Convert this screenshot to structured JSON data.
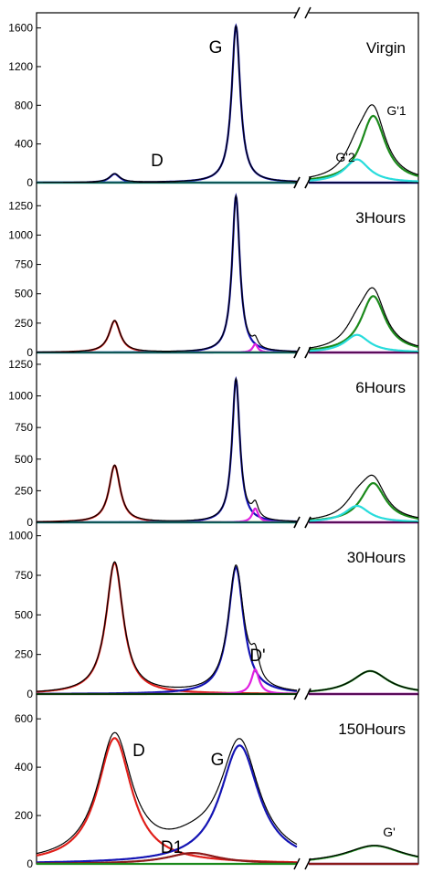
{
  "chart_data": {
    "type": "line",
    "x_type": "raman_shift_cm-1",
    "x_segments": [
      [
        1200,
        1700
      ],
      [
        2550,
        2800
      ]
    ],
    "break_symbol": "//",
    "colors": {
      "measured": "#000000",
      "D": "#e0201b",
      "G": "#1414b4",
      "D_prime": "#e020e0",
      "G2D": "#28dcdc",
      "G1": "#1b8a1b",
      "D1": "#8b1a1a"
    },
    "panels": [
      {
        "label": "Virgin",
        "ylim": [
          0,
          1700
        ],
        "yticks": [
          "0",
          "400",
          "800",
          "1200",
          "1600"
        ],
        "peak_labels": [
          {
            "text": "G",
            "near": "G"
          },
          {
            "text": "D",
            "near": "D"
          },
          {
            "text": "G'1",
            "near": "G1"
          },
          {
            "text": "G'2",
            "near": "G2D"
          }
        ],
        "peaks": {
          "D": {
            "x": 1350,
            "h": 90,
            "w": 12,
            "color": "G"
          },
          "G": {
            "x": 1583,
            "h": 1620,
            "w": 10
          },
          "G1": {
            "x": 2697,
            "h": 690,
            "w": 34
          },
          "G2D": {
            "x": 2660,
            "h": 240,
            "w": 34
          }
        }
      },
      {
        "label": "3Hours",
        "ylim": [
          0,
          1400
        ],
        "yticks": [
          "0",
          "250",
          "500",
          "750",
          "1000",
          "1250"
        ],
        "peak_labels": [],
        "peaks": {
          "D": {
            "x": 1350,
            "h": 270,
            "w": 13
          },
          "G": {
            "x": 1583,
            "h": 1330,
            "w": 9
          },
          "D_prime": {
            "x": 1620,
            "h": 70,
            "w": 6
          },
          "G1": {
            "x": 2697,
            "h": 480,
            "w": 34
          },
          "G2D": {
            "x": 2660,
            "h": 150,
            "w": 34
          }
        }
      },
      {
        "label": "6Hours",
        "ylim": [
          0,
          1300
        ],
        "yticks": [
          "0",
          "250",
          "500",
          "750",
          "1000",
          "1250"
        ],
        "peak_labels": [],
        "peaks": {
          "D": {
            "x": 1350,
            "h": 450,
            "w": 13
          },
          "G": {
            "x": 1583,
            "h": 1130,
            "w": 9
          },
          "D_prime": {
            "x": 1620,
            "h": 110,
            "w": 7
          },
          "G1": {
            "x": 2697,
            "h": 310,
            "w": 34
          },
          "G2D": {
            "x": 2660,
            "h": 130,
            "w": 34
          }
        }
      },
      {
        "label": "30Hours",
        "ylim": [
          0,
          1050
        ],
        "yticks": [
          "0",
          "250",
          "500",
          "750",
          "1000"
        ],
        "peak_labels": [
          {
            "text": "D'",
            "near": "D_prime"
          }
        ],
        "peaks": {
          "D": {
            "x": 1350,
            "h": 830,
            "w": 20
          },
          "G": {
            "x": 1583,
            "h": 800,
            "w": 18
          },
          "D_prime": {
            "x": 1620,
            "h": 155,
            "w": 9
          },
          "G1": {
            "x": 2690,
            "h": 145,
            "w": 50
          }
        }
      },
      {
        "label": "150Hours",
        "ylim": [
          0,
          680
        ],
        "yticks": [
          "0",
          "200",
          "400",
          "600"
        ],
        "peak_labels": [
          {
            "text": "D",
            "near": "D"
          },
          {
            "text": "G",
            "near": "G"
          },
          {
            "text": "D1",
            "near": "D1"
          },
          {
            "text": "G'",
            "near": "G1"
          }
        ],
        "peaks": {
          "D": {
            "x": 1350,
            "h": 520,
            "w": 40
          },
          "G": {
            "x": 1590,
            "h": 490,
            "w": 45
          },
          "D1": {
            "x": 1500,
            "h": 45,
            "w": 60
          },
          "G1": {
            "x": 2700,
            "h": 75,
            "w": 80
          }
        }
      }
    ]
  }
}
